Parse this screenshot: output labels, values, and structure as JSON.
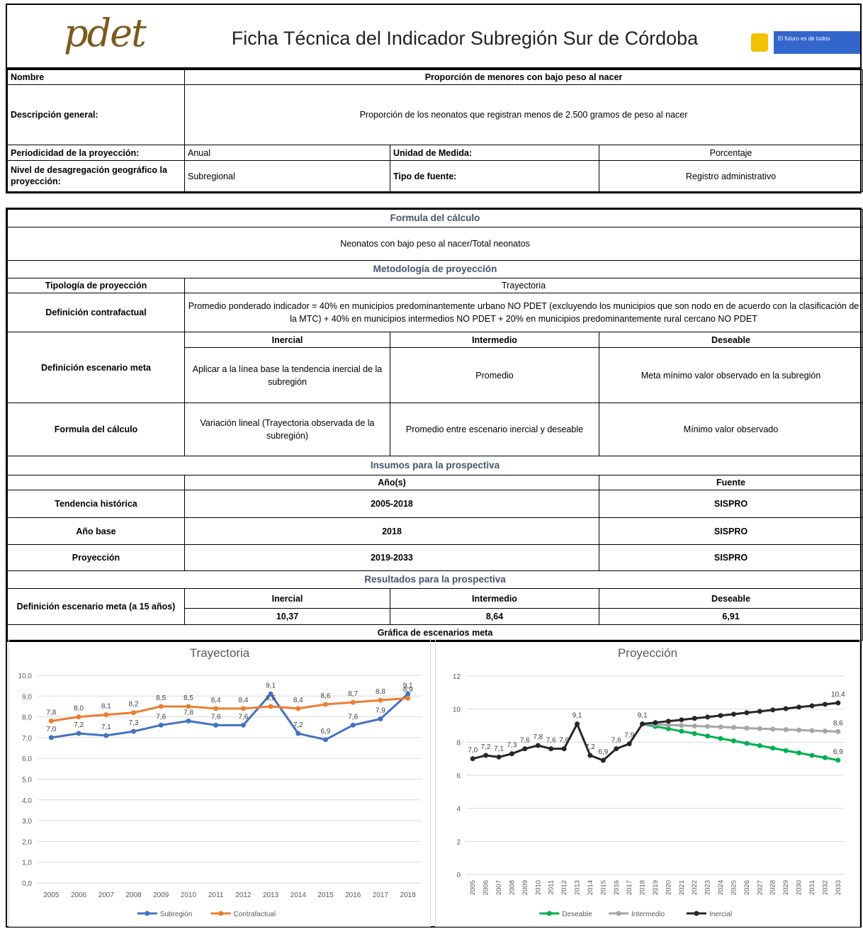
{
  "header": {
    "logo": "pdet",
    "title": "Ficha Técnica del Indicador Subregión Sur de Córdoba",
    "slogan": "El futuro es de todos"
  },
  "ficha": {
    "nombre": [
      "Nombre",
      "Proporción de menores con bajo peso al nacer"
    ],
    "descripcion": [
      "Descripción general:",
      "Proporción de los neonatos que registran menos de 2.500 gramos de peso al nacer"
    ],
    "periodicidad": [
      "Periodicidad de la proyección:",
      "Anual",
      "Unidad de Medida:",
      "Porcentaje"
    ],
    "nivel": [
      "Nivel de desagregación geográfico la proyección:",
      "Subregional",
      "Tipo de fuente:",
      "Registro administrativo"
    ]
  },
  "formula": {
    "title": "Formula del cálculo",
    "text": "Neonatos con bajo peso al nacer/Total neonatos"
  },
  "metodologia": {
    "title": "Metodología de proyección",
    "tipologia": [
      "Tipología de proyección",
      "Trayectoria"
    ],
    "contrafactual": [
      "Definición contrafactual",
      "Promedio ponderado indicador = 40% en municipios predominantemente urbano NO PDET (excluyendo los municipios que son nodo en de acuerdo con la clasificación de la MTC) + 40% en municipios intermedios NO PDET + 20% en municipios predominantemente rural cercano NO PDET"
    ],
    "escenarios": [
      "Inercial",
      "Intermedio",
      "Deseable"
    ],
    "escenario_meta": [
      "Definición escenario meta",
      "Aplicar a la línea base la tendencia inercial de la subregión",
      "Promedio",
      "Meta mínimo valor observado en la subregión"
    ],
    "formula_calculo": [
      "Formula del cálculo",
      "Variación lineal (Trayectoria observada de la subregión)",
      "Promedio entre escenario inercial y deseable",
      "Mínimo valor observado"
    ]
  },
  "insumos": {
    "title": "Insumos para la prospectiva",
    "header": [
      "Año(s)",
      "Fuente"
    ],
    "rows": [
      [
        "Tendencia histórica",
        "2005-2018",
        "SISPRO"
      ],
      [
        "Año base",
        "2018",
        "SISPRO"
      ],
      [
        "Proyección",
        "2019-2033",
        "SISPRO"
      ]
    ]
  },
  "resultados": {
    "title": "Resultados para la prospectiva",
    "label": "Definición escenario meta (a 15 años)",
    "header": [
      "Inercial",
      "Intermedio",
      "Deseable"
    ],
    "values": [
      "10,37",
      "8,64",
      "6,91"
    ]
  },
  "grafica_title": "Gráfica de escenarios meta",
  "chart_data": [
    {
      "type": "line",
      "title": "Trayectoria",
      "categories": [
        "2005",
        "2006",
        "2007",
        "2008",
        "2009",
        "2010",
        "2011",
        "2012",
        "2013",
        "2014",
        "2015",
        "2016",
        "2017",
        "2018"
      ],
      "series": [
        {
          "name": "Subregión",
          "color": "#4472c4",
          "values": [
            7.0,
            7.2,
            7.1,
            7.3,
            7.6,
            7.8,
            7.6,
            7.6,
            9.1,
            7.2,
            6.9,
            7.6,
            7.9,
            9.1
          ],
          "value_labels": [
            "7,0",
            "7,2",
            "7,1",
            "7,3",
            "7,6",
            "7,8",
            "7,6",
            "7,6",
            "9,1",
            "7,2",
            "6,9",
            "7,6",
            "7,9",
            "9,1"
          ]
        },
        {
          "name": "Contrafactual",
          "color": "#ed7d31",
          "values": [
            7.8,
            8.0,
            8.1,
            8.2,
            8.5,
            8.5,
            8.4,
            8.4,
            8.5,
            8.4,
            8.6,
            8.7,
            8.8,
            8.9
          ],
          "value_labels": [
            "7,8",
            "8,0",
            "8,1",
            "8,2",
            "8,5",
            "8,5",
            "8,4",
            "8,4",
            "8,5",
            "8,4",
            "8,6",
            "8,7",
            "8,8",
            "8,9"
          ]
        }
      ],
      "ylim": [
        0,
        10
      ],
      "yticks": [
        {
          "value": 0,
          "label": "0,0"
        },
        {
          "value": 1,
          "label": "1,0"
        },
        {
          "value": 2,
          "label": "2,0"
        },
        {
          "value": 3,
          "label": "3,0"
        },
        {
          "value": 4,
          "label": "4,0"
        },
        {
          "value": 5,
          "label": "5,0"
        },
        {
          "value": 6,
          "label": "6,0"
        },
        {
          "value": 7,
          "label": "7,0"
        },
        {
          "value": 8,
          "label": "8,0"
        },
        {
          "value": 9,
          "label": "9,0"
        },
        {
          "value": 10,
          "label": "10,0"
        }
      ],
      "grid": true,
      "legend": "bottom"
    },
    {
      "type": "line",
      "title": "Proyección",
      "categories": [
        "2005",
        "2006",
        "2007",
        "2008",
        "2009",
        "2010",
        "2011",
        "2012",
        "2013",
        "2014",
        "2015",
        "2016",
        "2017",
        "2018",
        "2019",
        "2020",
        "2021",
        "2022",
        "2023",
        "2024",
        "2025",
        "2026",
        "2027",
        "2028",
        "2029",
        "2030",
        "2031",
        "2032",
        "2033"
      ],
      "series": [
        {
          "name": "Deseable",
          "color": "#00b050",
          "values": [
            null,
            null,
            null,
            null,
            null,
            null,
            null,
            null,
            null,
            null,
            null,
            null,
            null,
            9.1,
            8.95,
            8.81,
            8.66,
            8.52,
            8.37,
            8.22,
            8.08,
            7.93,
            7.79,
            7.64,
            7.49,
            7.35,
            7.2,
            7.06,
            6.91
          ],
          "value_labels": [
            null,
            null,
            null,
            null,
            null,
            null,
            null,
            null,
            null,
            null,
            null,
            null,
            null,
            null,
            null,
            null,
            null,
            null,
            null,
            null,
            null,
            null,
            null,
            null,
            null,
            null,
            null,
            null,
            "6,9"
          ]
        },
        {
          "name": "Intermedio",
          "color": "#a6a6a6",
          "values": [
            null,
            null,
            null,
            null,
            null,
            null,
            null,
            null,
            null,
            null,
            null,
            null,
            null,
            9.1,
            9.07,
            9.04,
            9.01,
            8.98,
            8.95,
            8.92,
            8.89,
            8.85,
            8.82,
            8.79,
            8.76,
            8.73,
            8.7,
            8.67,
            8.64
          ],
          "value_labels": [
            null,
            null,
            null,
            null,
            null,
            null,
            null,
            null,
            null,
            null,
            null,
            null,
            null,
            null,
            null,
            null,
            null,
            null,
            null,
            null,
            null,
            null,
            null,
            null,
            null,
            null,
            null,
            null,
            "8,6"
          ]
        },
        {
          "name": "Inercial",
          "color": "#262626",
          "values": [
            7.0,
            7.2,
            7.1,
            7.3,
            7.6,
            7.8,
            7.6,
            7.6,
            9.1,
            7.2,
            6.9,
            7.6,
            7.9,
            9.1,
            9.18,
            9.27,
            9.35,
            9.44,
            9.52,
            9.61,
            9.69,
            9.78,
            9.86,
            9.95,
            10.03,
            10.12,
            10.2,
            10.29,
            10.37
          ],
          "value_labels": [
            "7,0",
            "7,2",
            "7,1",
            "7,3",
            "7,6",
            "7,8",
            "7,6",
            "7,6",
            "9,1",
            "7,2",
            "6,9",
            "7,6",
            "7,9",
            "9,1",
            null,
            null,
            null,
            null,
            null,
            null,
            null,
            null,
            null,
            null,
            null,
            null,
            null,
            null,
            "10,4"
          ]
        }
      ],
      "ylim": [
        0,
        12
      ],
      "yticks": [
        0,
        2,
        4,
        6,
        8,
        10,
        12
      ],
      "grid": true,
      "legend": "bottom"
    }
  ]
}
